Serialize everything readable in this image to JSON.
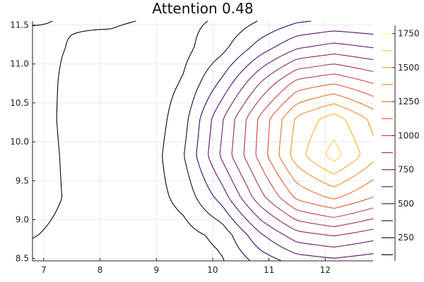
{
  "chart_data": {
    "type": "contour",
    "title": "Attention 0.48",
    "xlabel": "",
    "ylabel": "",
    "xlim": [
      6.8,
      12.85
    ],
    "ylim": [
      8.47,
      11.55
    ],
    "x_ticks": [
      7,
      8,
      9,
      10,
      11,
      12
    ],
    "y_ticks": [
      8.5,
      9.0,
      9.5,
      10.0,
      10.5,
      11.0,
      11.5
    ],
    "y_tick_labels": [
      "8.5",
      "9.0",
      "9.5",
      "10.0",
      "10.5",
      "11.0",
      "11.5"
    ],
    "grid": true,
    "colorbar": {
      "ticks": [
        250,
        500,
        750,
        1000,
        1250,
        1500,
        1750
      ],
      "range": [
        80,
        1810
      ],
      "level_values": [
        125,
        250,
        375,
        500,
        625,
        750,
        875,
        1000,
        1125,
        1250,
        1375,
        1500,
        1625,
        1750
      ],
      "colormap": [
        "#000004",
        "#320a5e",
        "#781c6d",
        "#bc3754",
        "#ed6925",
        "#fbb61a",
        "#fcffa4"
      ]
    },
    "field": {
      "description": "scalar field shown by contour levels",
      "x_nodes": [
        6.8,
        7.5,
        8.2,
        8.85,
        9.5,
        10.15,
        10.85,
        11.5,
        12.15,
        12.85
      ],
      "y_nodes": [
        8.47,
        8.8,
        9.28,
        9.82,
        10.3,
        10.75,
        11.2,
        11.55
      ],
      "values": [
        [
          90,
          70,
          45,
          40,
          55,
          110,
          300,
          430,
          470,
          430
        ],
        [
          130,
          95,
          55,
          50,
          80,
          160,
          480,
          700,
          760,
          680
        ],
        [
          170,
          110,
          60,
          60,
          170,
          420,
          830,
          1150,
          1270,
          1120
        ],
        [
          180,
          100,
          45,
          45,
          250,
          640,
          1050,
          1450,
          1680,
          1420
        ],
        [
          180,
          90,
          25,
          30,
          210,
          600,
          1030,
          1400,
          1560,
          1340
        ],
        [
          170,
          100,
          55,
          45,
          140,
          400,
          760,
          1050,
          1120,
          1000
        ],
        [
          150,
          120,
          100,
          70,
          95,
          210,
          440,
          620,
          680,
          630
        ],
        [
          120,
          130,
          135,
          120,
          100,
          140,
          260,
          360,
          400,
          380
        ]
      ]
    }
  }
}
